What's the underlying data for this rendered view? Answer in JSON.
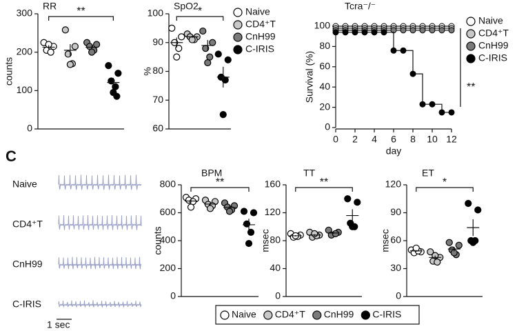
{
  "panel_label": "C",
  "scale_bar": "1 sec",
  "groups": [
    {
      "name": "Naive",
      "color": "#ffffff"
    },
    {
      "name": "CD4⁺T",
      "color": "#c8c8c8"
    },
    {
      "name": "CnH99",
      "color": "#7a7a7a"
    },
    {
      "name": "C-IRIS",
      "color": "#000000"
    }
  ],
  "chart_data": [
    {
      "type": "dot",
      "title": "RR",
      "ylabel": "counts",
      "ylim": [
        0,
        300
      ],
      "yticks": [
        0,
        100,
        200,
        300
      ],
      "significance": "**",
      "series": [
        {
          "values": [
            225,
            215,
            205,
            200,
            220
          ],
          "mean": 213,
          "sem": 5
        },
        {
          "values": [
            258,
            215,
            195,
            170,
            168
          ],
          "mean": 205,
          "sem": 16
        },
        {
          "values": [
            225,
            220,
            215,
            205,
            200
          ],
          "mean": 213,
          "sem": 5
        },
        {
          "values": [
            165,
            145,
            125,
            110,
            95,
            85
          ],
          "mean": 121,
          "sem": 12
        }
      ]
    },
    {
      "type": "dot",
      "title": "SpO2",
      "ylabel": "%",
      "ylim": [
        60,
        100
      ],
      "yticks": [
        60,
        70,
        80,
        90,
        100
      ],
      "significance": "*",
      "series": [
        {
          "values": [
            95,
            92,
            90,
            88,
            85
          ],
          "mean": 90,
          "sem": 1.7
        },
        {
          "values": [
            93,
            92,
            92,
            91,
            91
          ],
          "mean": 92,
          "sem": 0.4
        },
        {
          "values": [
            94,
            90,
            88,
            85,
            83
          ],
          "mean": 89,
          "sem": 1.9
        },
        {
          "values": [
            86,
            84,
            78,
            77,
            65
          ],
          "mean": 78,
          "sem": 3.6
        }
      ]
    },
    {
      "type": "step",
      "title": "Tcra⁻/⁻",
      "xlabel": "day",
      "ylabel": "Survival (%)",
      "significance": "**",
      "x": [
        0,
        1,
        2,
        3,
        4,
        5,
        6,
        7,
        8,
        9,
        10,
        11,
        12
      ],
      "xlim": [
        0,
        12
      ],
      "xticks": [
        0,
        2,
        4,
        6,
        8,
        10,
        12
      ],
      "ylim": [
        0,
        100
      ],
      "yticks": [
        0,
        20,
        40,
        60,
        80,
        100
      ],
      "series": [
        {
          "values": [
            100,
            100,
            100,
            100,
            100,
            100,
            100,
            100,
            100,
            100,
            100,
            100,
            100
          ]
        },
        {
          "values": [
            98,
            98,
            98,
            98,
            98,
            98,
            98,
            98,
            98,
            98,
            98,
            98,
            98
          ]
        },
        {
          "values": [
            96,
            96,
            96,
            96,
            96,
            96,
            96,
            96,
            96,
            96,
            96,
            96,
            96
          ]
        },
        {
          "values": [
            94,
            94,
            94,
            94,
            94,
            94,
            76,
            76,
            53,
            23,
            23,
            15,
            15
          ]
        }
      ]
    },
    {
      "type": "dot",
      "title": "BPM",
      "ylabel": "counts",
      "ylim": [
        0,
        800
      ],
      "yticks": [
        0,
        200,
        400,
        600,
        800
      ],
      "significance": "**",
      "series": [
        {
          "values": [
            710,
            700,
            690,
            680,
            640
          ],
          "mean": 684,
          "sem": 12
        },
        {
          "values": [
            690,
            680,
            660,
            650,
            630
          ],
          "mean": 662,
          "sem": 10
        },
        {
          "values": [
            670,
            650,
            640,
            620,
            610
          ],
          "mean": 638,
          "sem": 11
        },
        {
          "values": [
            610,
            600,
            520,
            460,
            380
          ],
          "mean": 514,
          "sem": 43
        }
      ]
    },
    {
      "type": "dot",
      "title": "TT",
      "ylabel": "msec",
      "ylim": [
        0,
        160
      ],
      "yticks": [
        0,
        40,
        80,
        120,
        160
      ],
      "significance": "**",
      "series": [
        {
          "values": [
            90,
            88,
            85,
            86,
            87
          ],
          "mean": 87,
          "sem": 0.9
        },
        {
          "values": [
            92,
            88,
            85,
            87,
            90
          ],
          "mean": 88,
          "sem": 1.2
        },
        {
          "values": [
            95,
            92,
            88,
            90
          ],
          "mean": 91,
          "sem": 1.5
        },
        {
          "values": [
            140,
            135,
            105,
            100,
            100
          ],
          "mean": 116,
          "sem": 9
        }
      ]
    },
    {
      "type": "dot",
      "title": "ET",
      "ylabel": "msec",
      "ylim": [
        0,
        120
      ],
      "yticks": [
        0,
        30,
        60,
        90,
        120
      ],
      "significance": "*",
      "series": [
        {
          "values": [
            50,
            48,
            47,
            49,
            52
          ],
          "mean": 49,
          "sem": 0.9
        },
        {
          "values": [
            48,
            42,
            38,
            37,
            44
          ],
          "mean": 42,
          "sem": 2
        },
        {
          "values": [
            58,
            55,
            50,
            45,
            47
          ],
          "mean": 51,
          "sem": 2.4
        },
        {
          "values": [
            100,
            93,
            60,
            60,
            58
          ],
          "mean": 74,
          "sem": 9
        }
      ]
    }
  ]
}
